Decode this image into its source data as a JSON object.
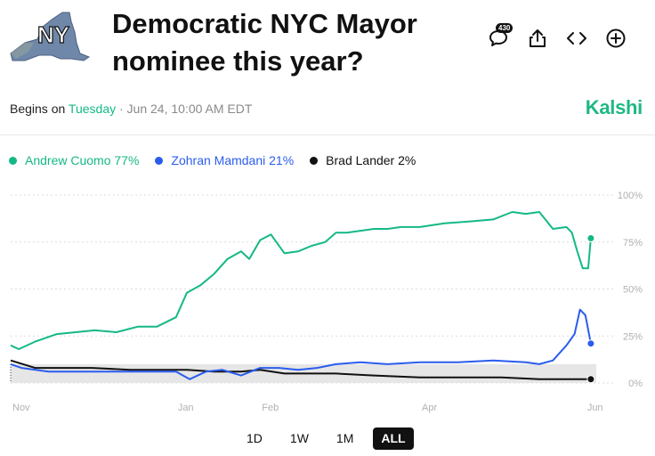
{
  "header": {
    "logo_text": "NY",
    "title": "Democratic NYC Mayor nominee this year?",
    "comment_count": "430"
  },
  "event": {
    "begins_label": "Begins on",
    "begins_day": "Tuesday",
    "begins_rest": "· Jun 24, 10:00 AM EDT",
    "brand": "Kalshi"
  },
  "colors": {
    "cuomo": "#14b886",
    "mamdani": "#2a5ded",
    "lander": "#111111",
    "band": "#e6e6e6",
    "grid": "#dcdcdc",
    "axis_text": "#b0b0b0"
  },
  "icons": [
    "comment-icon",
    "share-icon",
    "embed-icon",
    "add-icon"
  ],
  "legend": [
    {
      "label": "Andrew Cuomo 77%",
      "color": "#14b886"
    },
    {
      "label": "Zohran Mamdani 21%",
      "color": "#2a5ded"
    },
    {
      "label": "Brad Lander 2%",
      "color": "#111111"
    }
  ],
  "range_buttons": [
    {
      "label": "1D",
      "active": false
    },
    {
      "label": "1W",
      "active": false
    },
    {
      "label": "1M",
      "active": false
    },
    {
      "label": "ALL",
      "active": true
    }
  ],
  "chart_data": {
    "type": "line",
    "title": "Democratic NYC Mayor nominee this year?",
    "xlabel": "",
    "ylabel": "",
    "x_range": [
      "2024-11-01",
      "2025-06-05"
    ],
    "ylim": [
      0,
      100
    ],
    "x_ticks": [
      {
        "label": "Nov",
        "x": "2024-11-01"
      },
      {
        "label": "Jan",
        "x": "2025-01-01"
      },
      {
        "label": "Feb",
        "x": "2025-02-01"
      },
      {
        "label": "Apr",
        "x": "2025-04-01"
      },
      {
        "label": "Jun",
        "x": "2025-06-01"
      }
    ],
    "y_ticks": [
      {
        "label": "0%",
        "y": 0
      },
      {
        "label": "25%",
        "y": 25
      },
      {
        "label": "50%",
        "y": 50
      },
      {
        "label": "75%",
        "y": 75
      },
      {
        "label": "100%",
        "y": 100
      }
    ],
    "band_range": [
      0,
      10
    ],
    "grid": true,
    "series": [
      {
        "name": "Andrew Cuomo",
        "final_label": "77%",
        "color": "#14b886",
        "x": [
          "2024-11-01",
          "2024-11-04",
          "2024-11-10",
          "2024-11-18",
          "2024-11-25",
          "2024-12-02",
          "2024-12-10",
          "2024-12-18",
          "2024-12-25",
          "2025-01-01",
          "2025-01-05",
          "2025-01-10",
          "2025-01-15",
          "2025-01-20",
          "2025-01-25",
          "2025-01-28",
          "2025-02-01",
          "2025-02-05",
          "2025-02-10",
          "2025-02-15",
          "2025-02-20",
          "2025-02-25",
          "2025-03-01",
          "2025-03-05",
          "2025-03-10",
          "2025-03-15",
          "2025-03-20",
          "2025-03-25",
          "2025-04-01",
          "2025-04-10",
          "2025-04-20",
          "2025-04-28",
          "2025-05-05",
          "2025-05-10",
          "2025-05-15",
          "2025-05-20",
          "2025-05-25",
          "2025-05-27",
          "2025-05-29",
          "2025-05-31",
          "2025-06-02",
          "2025-06-03"
        ],
        "values": [
          20,
          18,
          22,
          26,
          27,
          28,
          27,
          30,
          30,
          35,
          48,
          52,
          58,
          66,
          70,
          66,
          76,
          79,
          69,
          70,
          73,
          75,
          80,
          80,
          81,
          82,
          82,
          83,
          83,
          85,
          86,
          87,
          91,
          90,
          91,
          82,
          83,
          80,
          70,
          61,
          61,
          77
        ]
      },
      {
        "name": "Zohran Mamdani",
        "final_label": "21%",
        "color": "#2a5ded",
        "x": [
          "2024-11-01",
          "2024-11-05",
          "2024-11-15",
          "2024-11-25",
          "2024-12-05",
          "2024-12-15",
          "2024-12-25",
          "2025-01-01",
          "2025-01-06",
          "2025-01-12",
          "2025-01-18",
          "2025-01-25",
          "2025-02-01",
          "2025-02-08",
          "2025-02-15",
          "2025-02-22",
          "2025-03-01",
          "2025-03-10",
          "2025-03-20",
          "2025-04-01",
          "2025-04-15",
          "2025-04-28",
          "2025-05-10",
          "2025-05-15",
          "2025-05-20",
          "2025-05-25",
          "2025-05-28",
          "2025-05-30",
          "2025-06-01",
          "2025-06-03"
        ],
        "values": [
          10,
          8,
          6,
          6,
          6,
          6,
          6,
          6,
          2,
          6,
          7,
          4,
          8,
          8,
          7,
          8,
          10,
          11,
          10,
          11,
          11,
          12,
          11,
          10,
          12,
          20,
          26,
          39,
          36,
          21
        ]
      },
      {
        "name": "Brad Lander",
        "final_label": "2%",
        "color": "#111111",
        "x": [
          "2024-11-01",
          "2024-11-10",
          "2024-11-20",
          "2024-12-01",
          "2024-12-15",
          "2024-12-25",
          "2025-01-05",
          "2025-01-15",
          "2025-01-25",
          "2025-02-01",
          "2025-02-10",
          "2025-02-20",
          "2025-03-01",
          "2025-03-15",
          "2025-04-01",
          "2025-04-15",
          "2025-05-01",
          "2025-05-15",
          "2025-05-25",
          "2025-06-01",
          "2025-06-03"
        ],
        "values": [
          12,
          8,
          8,
          8,
          7,
          7,
          7,
          6,
          6,
          7,
          5,
          5,
          5,
          4,
          3,
          3,
          3,
          2,
          2,
          2,
          2
        ]
      }
    ]
  }
}
